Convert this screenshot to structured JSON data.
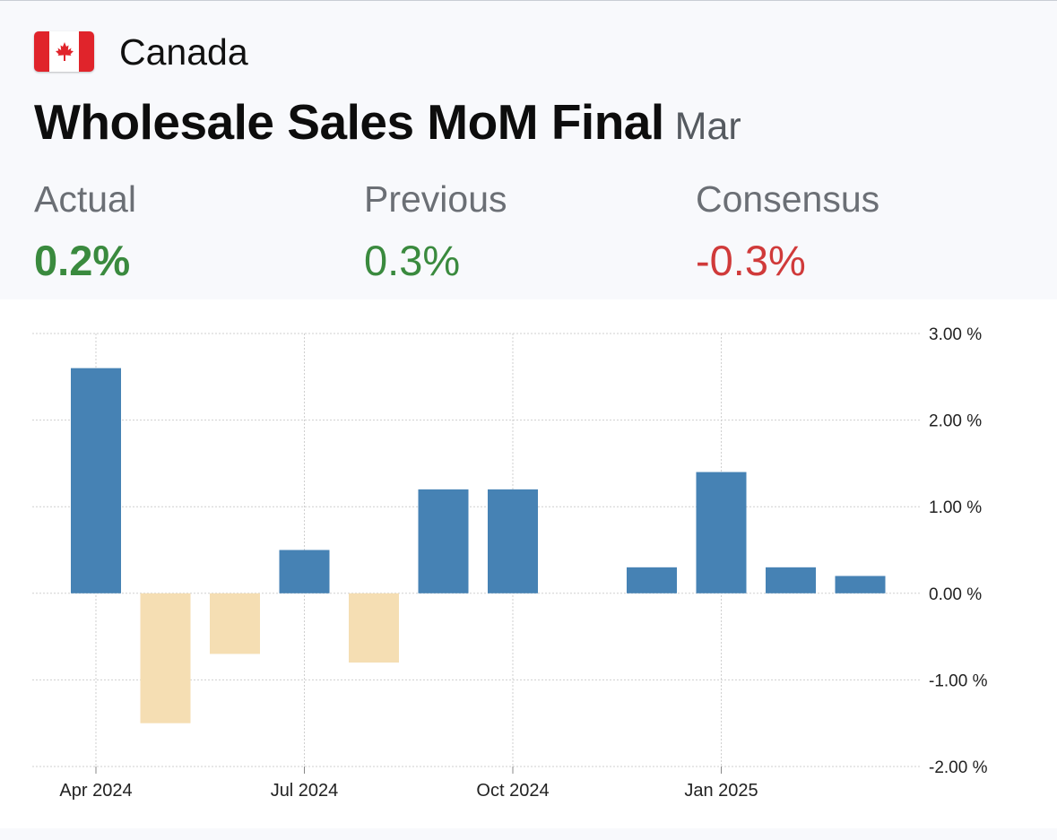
{
  "header": {
    "country": "Canada",
    "title": "Wholesale Sales MoM Final",
    "period": "Mar"
  },
  "stats": {
    "actual": {
      "label": "Actual",
      "value": "0.2%",
      "color": "#3a8a3e"
    },
    "previous": {
      "label": "Previous",
      "value": "0.3%",
      "color": "#3a8a3e"
    },
    "consensus": {
      "label": "Consensus",
      "value": "-0.3%",
      "color": "#d03a3a"
    }
  },
  "chart_data": {
    "type": "bar",
    "categories": [
      "Apr 2024",
      "May 2024",
      "Jun 2024",
      "Jul 2024",
      "Aug 2024",
      "Sep 2024",
      "Oct 2024",
      "Nov 2024",
      "Dec 2024",
      "Jan 2025",
      "Feb 2025",
      "Mar 2025"
    ],
    "values": [
      2.6,
      -1.5,
      -0.7,
      0.5,
      -0.8,
      1.2,
      1.2,
      null,
      0.3,
      1.4,
      0.3,
      0.2
    ],
    "unit": "%",
    "ylim": [
      -2,
      3
    ],
    "y_ticks": [
      "3.00 %",
      "2.00 %",
      "1.00 %",
      "0.00 %",
      "-1.00 %",
      "-2.00 %"
    ],
    "x_tick_labels": [
      "Apr 2024",
      "Jul 2024",
      "Oct 2024",
      "Jan 2025"
    ],
    "y_axis_position": "right",
    "grid": true,
    "colors": {
      "positive": "#4682b4",
      "negative": "#f5deb3"
    }
  }
}
